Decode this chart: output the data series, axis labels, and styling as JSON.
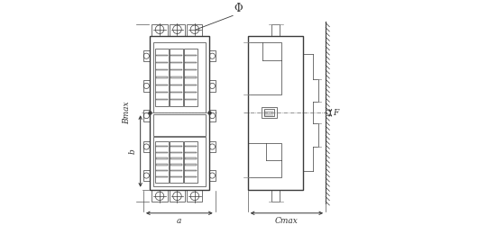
{
  "bg_color": "#ffffff",
  "line_color": "#3a3a3a",
  "dim_color": "#333333",
  "lw_thin": 0.5,
  "lw_med": 0.8,
  "lw_thick": 1.0,
  "front": {
    "bx": 0.06,
    "by": 0.12,
    "bw": 0.28,
    "bh": 0.72,
    "label_Bmax": "Bmax",
    "label_b": "b",
    "label_a": "a",
    "label_phi": "Φ"
  },
  "side": {
    "sx": 0.52,
    "sy": 0.12,
    "sw": 0.26,
    "sh": 0.72,
    "label_Cmax": "Cmax",
    "label_F": "F"
  }
}
